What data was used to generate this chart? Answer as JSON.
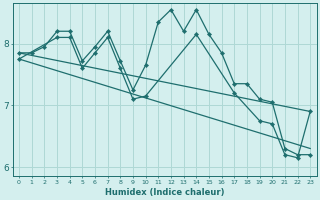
{
  "xlabel": "Humidex (Indice chaleur)",
  "bg_color": "#d4efee",
  "grid_color": "#aed8d5",
  "line_color": "#1e6e6e",
  "xlim": [
    -0.5,
    23.5
  ],
  "ylim": [
    5.85,
    8.65
  ],
  "yticks": [
    6,
    7,
    8
  ],
  "xticks": [
    0,
    1,
    2,
    3,
    4,
    5,
    6,
    7,
    8,
    9,
    10,
    11,
    12,
    13,
    14,
    15,
    16,
    17,
    18,
    19,
    20,
    21,
    22,
    23
  ],
  "lines": [
    {
      "x": [
        0,
        1,
        2,
        3,
        4,
        5,
        6,
        7,
        8,
        9,
        10,
        11,
        12,
        13,
        14,
        15,
        16,
        17,
        18,
        19,
        20,
        21,
        22,
        23
      ],
      "y": [
        7.85,
        7.85,
        7.95,
        8.2,
        8.2,
        7.72,
        7.95,
        8.2,
        7.72,
        7.25,
        7.65,
        8.35,
        8.55,
        8.2,
        8.55,
        8.15,
        7.85,
        7.35,
        7.35,
        7.1,
        7.05,
        6.3,
        6.2,
        6.2
      ],
      "has_markers": true
    },
    {
      "x": [
        0,
        3,
        4,
        5,
        6,
        7,
        8,
        9,
        10,
        14,
        17,
        19,
        20,
        21,
        22,
        23
      ],
      "y": [
        7.75,
        8.1,
        8.1,
        7.6,
        7.85,
        8.1,
        7.6,
        7.1,
        7.15,
        8.15,
        7.2,
        6.75,
        6.7,
        6.2,
        6.15,
        6.9
      ],
      "has_markers": true
    },
    {
      "x": [
        0,
        23
      ],
      "y": [
        7.85,
        6.9
      ],
      "has_markers": false
    },
    {
      "x": [
        0,
        23
      ],
      "y": [
        7.75,
        6.3
      ],
      "has_markers": false
    }
  ]
}
